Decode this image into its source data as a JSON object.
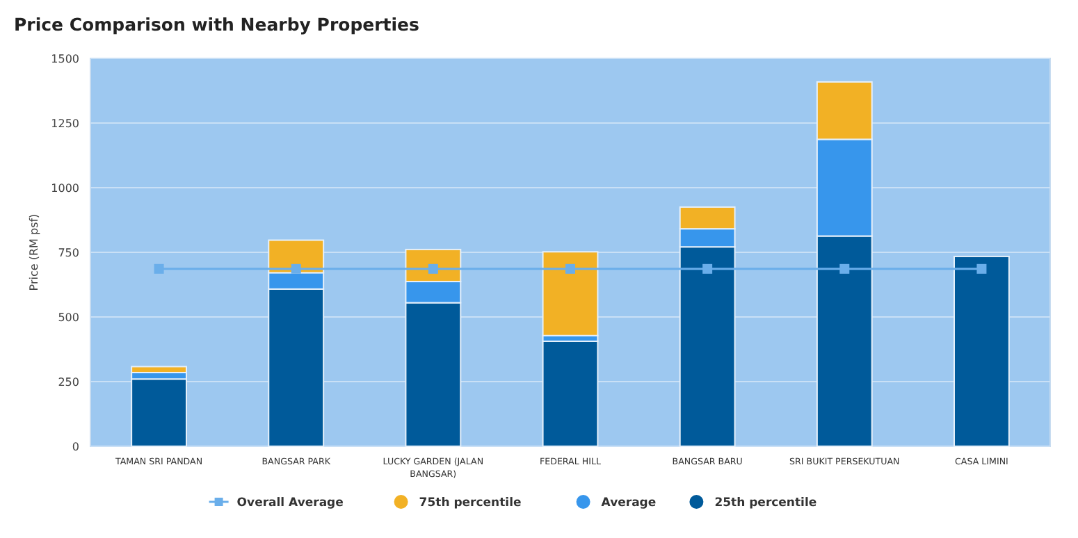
{
  "chart_data": {
    "type": "bar",
    "title": "Price Comparison with Nearby Properties",
    "ylabel": "Price (RM psf)",
    "categories": [
      "TAMAN SRI PANDAN",
      "BANGSAR PARK",
      "LUCKY GARDEN (JALAN BANGSAR)",
      "FEDERAL HILL",
      "BANGSAR BARU",
      "SRI BUKIT PERSEKUTUAN",
      "CASA LIMINI"
    ],
    "stacked": true,
    "ylim": [
      0,
      1500
    ],
    "yticks": [
      0,
      250,
      500,
      750,
      1000,
      1250,
      1500
    ],
    "grid": "y",
    "legend": "bottom",
    "series": [
      {
        "name": "25th percentile",
        "color": "#005a9a",
        "values": [
          260,
          608,
          555,
          406,
          771,
          813,
          734
        ]
      },
      {
        "name": "Average",
        "color": "#3796ec",
        "values": [
          25,
          63,
          82,
          22,
          70,
          374,
          null
        ]
      },
      {
        "name": "75th percentile",
        "color": "#f2b125",
        "values": [
          23,
          126,
          124,
          324,
          84,
          222,
          null
        ]
      },
      {
        "name": "Overall Average",
        "type": "line",
        "color": "#6aaeea",
        "marker": "square",
        "values": [
          686,
          686,
          686,
          686,
          686,
          686,
          686
        ]
      }
    ]
  }
}
